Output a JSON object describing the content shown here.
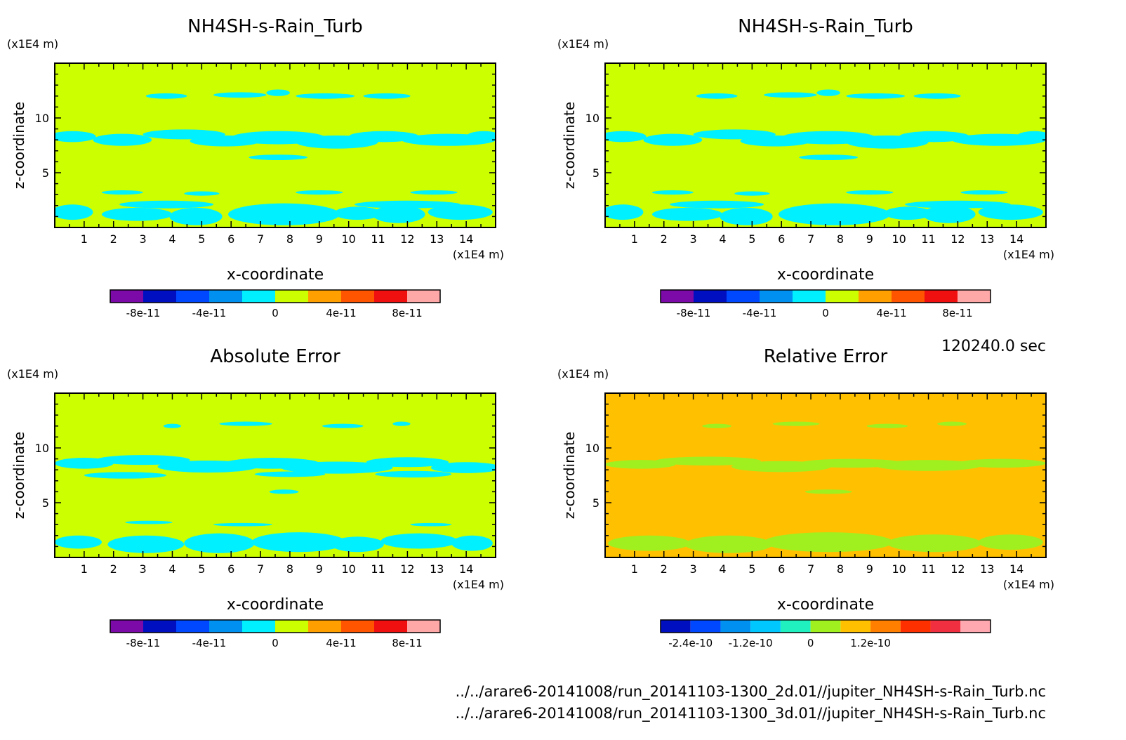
{
  "time_label": "120240.0 sec",
  "file_paths": [
    "../../arare6-20141008/run_20141103-1300_2d.01//jupiter_NH4SH-s-Rain_Turb.nc",
    "../../arare6-20141008/run_20141103-1300_3d.01//jupiter_NH4SH-s-Rain_Turb.nc"
  ],
  "chart_data": [
    {
      "type": "heatmap",
      "title": "NH4SH-s-Rain_Turb",
      "xlabel": "x-coordinate",
      "ylabel": "z-coordinate",
      "x_unit": "(x1E4 m)",
      "y_unit": "(x1E4 m)",
      "xlim": [
        0,
        15
      ],
      "ylim": [
        0,
        15
      ],
      "xticks": [
        "1",
        "2",
        "3",
        "4",
        "5",
        "6",
        "7",
        "8",
        "9",
        "10",
        "11",
        "12",
        "13",
        "14"
      ],
      "yticks": [
        "5",
        "10"
      ],
      "background_level": "0 to 2e-11",
      "colorbar": {
        "colors": [
          "#7b0aa8",
          "#0010c0",
          "#0048ff",
          "#0090f0",
          "#00f0ff",
          "#ccff00",
          "#ffa000",
          "#ff5500",
          "#f01010",
          "#ffa8a8"
        ],
        "labels": [
          "-8e-11",
          "-4e-11",
          "0",
          "4e-11",
          "8e-11"
        ]
      }
    },
    {
      "type": "heatmap",
      "title": "NH4SH-s-Rain_Turb",
      "xlabel": "x-coordinate",
      "ylabel": "z-coordinate",
      "x_unit": "(x1E4 m)",
      "y_unit": "(x1E4 m)",
      "xlim": [
        0,
        15
      ],
      "ylim": [
        0,
        15
      ],
      "xticks": [
        "1",
        "2",
        "3",
        "4",
        "5",
        "6",
        "7",
        "8",
        "9",
        "10",
        "11",
        "12",
        "13",
        "14"
      ],
      "yticks": [
        "5",
        "10"
      ],
      "background_level": "0 to 2e-11",
      "colorbar": {
        "colors": [
          "#7b0aa8",
          "#0010c0",
          "#0048ff",
          "#0090f0",
          "#00f0ff",
          "#ccff00",
          "#ffa000",
          "#ff5500",
          "#f01010",
          "#ffa8a8"
        ],
        "labels": [
          "-8e-11",
          "-4e-11",
          "0",
          "4e-11",
          "8e-11"
        ]
      }
    },
    {
      "type": "heatmap",
      "title": "Absolute Error",
      "xlabel": "x-coordinate",
      "ylabel": "z-coordinate",
      "x_unit": "(x1E4 m)",
      "y_unit": "(x1E4 m)",
      "xlim": [
        0,
        15
      ],
      "ylim": [
        0,
        15
      ],
      "xticks": [
        "1",
        "2",
        "3",
        "4",
        "5",
        "6",
        "7",
        "8",
        "9",
        "10",
        "11",
        "12",
        "13",
        "14"
      ],
      "yticks": [
        "5",
        "10"
      ],
      "background_level": "0 to 2e-11",
      "colorbar": {
        "colors": [
          "#7b0aa8",
          "#0010c0",
          "#0048ff",
          "#0090f0",
          "#00f0ff",
          "#ccff00",
          "#ffa000",
          "#ff5500",
          "#f01010",
          "#ffa8a8"
        ],
        "labels": [
          "-8e-11",
          "-4e-11",
          "0",
          "4e-11",
          "8e-11"
        ]
      }
    },
    {
      "type": "heatmap",
      "title": "Relative Error",
      "xlabel": "x-coordinate",
      "ylabel": "z-coordinate",
      "x_unit": "(x1E4 m)",
      "y_unit": "(x1E4 m)",
      "xlim": [
        0,
        15
      ],
      "ylim": [
        0,
        15
      ],
      "xticks": [
        "1",
        "2",
        "3",
        "4",
        "5",
        "6",
        "7",
        "8",
        "9",
        "10",
        "11",
        "12",
        "13",
        "14"
      ],
      "yticks": [
        "5",
        "10"
      ],
      "background_level": "0 to 3e-11",
      "colorbar": {
        "colors": [
          "#0010c0",
          "#0048ff",
          "#0090f0",
          "#00c8ff",
          "#20f0c0",
          "#a0f020",
          "#ffc000",
          "#ff8000",
          "#ff3000",
          "#f03040",
          "#ffa8b0"
        ],
        "labels": [
          "-2.4e-10",
          "-1.2e-10",
          "0",
          "1.2e-10"
        ]
      }
    }
  ]
}
